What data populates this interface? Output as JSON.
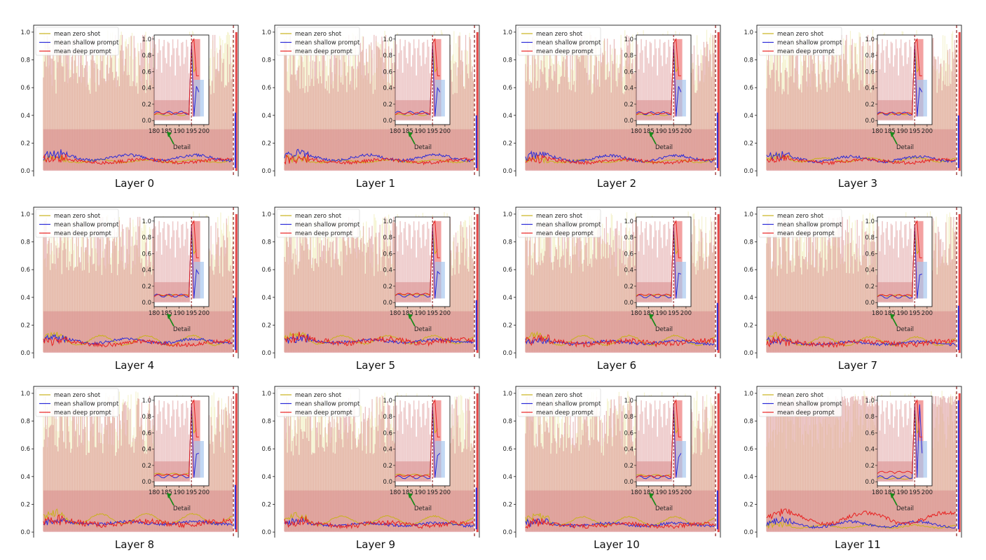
{
  "chart_data": {
    "type": "line",
    "figure_description": "Per-layer mean attention curves over token positions with shaded variance bands and an inset detail of positions 180-200",
    "layout": "grid 3 rows x 4 columns",
    "colors": {
      "zero_shot": "#c9b21c",
      "shallow": "#2a2ad8",
      "deep": "#e82020",
      "band": "#d98c8c",
      "band_light": "#f2f0c4",
      "marker": "#8b1a1a",
      "arrow": "#1a8a1a"
    },
    "legend": [
      "mean zero shot",
      "mean shallow prompt",
      "mean deep prompt"
    ],
    "xlim": [
      -10,
      200
    ],
    "ylim": [
      -0.05,
      1.05
    ],
    "xticks": [
      0,
      25,
      50,
      75,
      100,
      125,
      150,
      175,
      200
    ],
    "yticks": [
      "0.0",
      "0.2",
      "0.4",
      "0.6",
      "0.8",
      "1.0"
    ],
    "inset": {
      "xticks": [
        "180",
        "185",
        "190",
        "195",
        "200"
      ],
      "yticks": [
        "0.0",
        "0.2",
        "0.4",
        "0.6",
        "0.8",
        "1.0"
      ],
      "xlim": [
        180,
        202
      ],
      "ylim": [
        -0.05,
        1.05
      ],
      "detail_label": "Detail",
      "marker_x": 195
    },
    "vertical_marker_x": 195,
    "panels": [
      {
        "title": "Layer 0",
        "zero_base": 0.07,
        "zero_amp": 0.01,
        "shallow_base": 0.095,
        "shallow_amp": 0.02,
        "deep_base": 0.07,
        "deep_amp": 0.012,
        "deep_noise": 0.012,
        "end_deep": 1.0,
        "end_shallow": 0.42
      },
      {
        "title": "Layer 1",
        "zero_base": 0.07,
        "zero_amp": 0.01,
        "shallow_base": 0.095,
        "shallow_amp": 0.02,
        "deep_base": 0.07,
        "deep_amp": 0.012,
        "deep_noise": 0.012,
        "end_deep": 1.0,
        "end_shallow": 0.4
      },
      {
        "title": "Layer 2",
        "zero_base": 0.07,
        "zero_amp": 0.01,
        "shallow_base": 0.09,
        "shallow_amp": 0.02,
        "deep_base": 0.07,
        "deep_amp": 0.012,
        "deep_noise": 0.012,
        "end_deep": 1.0,
        "end_shallow": 0.42
      },
      {
        "title": "Layer 3",
        "zero_base": 0.08,
        "zero_amp": 0.015,
        "shallow_base": 0.085,
        "shallow_amp": 0.018,
        "deep_base": 0.07,
        "deep_amp": 0.012,
        "deep_noise": 0.012,
        "end_deep": 1.0,
        "end_shallow": 0.4
      },
      {
        "title": "Layer 4",
        "zero_base": 0.09,
        "zero_amp": 0.035,
        "shallow_base": 0.085,
        "shallow_amp": 0.015,
        "deep_base": 0.07,
        "deep_amp": 0.012,
        "deep_noise": 0.015,
        "end_deep": 1.0,
        "end_shallow": 0.4
      },
      {
        "title": "Layer 5",
        "zero_base": 0.095,
        "zero_amp": 0.03,
        "shallow_base": 0.085,
        "shallow_amp": 0.01,
        "deep_base": 0.085,
        "deep_amp": 0.015,
        "deep_noise": 0.02,
        "end_deep": 0.95,
        "end_shallow": 0.38
      },
      {
        "title": "Layer 6",
        "zero_base": 0.09,
        "zero_amp": 0.035,
        "shallow_base": 0.075,
        "shallow_amp": 0.01,
        "deep_base": 0.075,
        "deep_amp": 0.012,
        "deep_noise": 0.02,
        "end_deep": 0.95,
        "end_shallow": 0.36
      },
      {
        "title": "Layer 7",
        "zero_base": 0.085,
        "zero_amp": 0.03,
        "shallow_base": 0.07,
        "shallow_amp": 0.01,
        "deep_base": 0.07,
        "deep_amp": 0.012,
        "deep_noise": 0.02,
        "end_deep": 0.95,
        "end_shallow": 0.34
      },
      {
        "title": "Layer 8",
        "zero_base": 0.095,
        "zero_amp": 0.035,
        "shallow_base": 0.065,
        "shallow_amp": 0.01,
        "deep_base": 0.065,
        "deep_amp": 0.012,
        "deep_noise": 0.02,
        "end_deep": 1.0,
        "end_shallow": 0.34
      },
      {
        "title": "Layer 9",
        "zero_base": 0.085,
        "zero_amp": 0.03,
        "shallow_base": 0.055,
        "shallow_amp": 0.01,
        "deep_base": 0.055,
        "deep_amp": 0.012,
        "deep_noise": 0.018,
        "end_deep": 0.95,
        "end_shallow": 0.32
      },
      {
        "title": "Layer 10",
        "zero_base": 0.08,
        "zero_amp": 0.03,
        "shallow_base": 0.055,
        "shallow_amp": 0.01,
        "deep_base": 0.05,
        "deep_amp": 0.01,
        "deep_noise": 0.015,
        "end_deep": 1.0,
        "end_shallow": 0.3
      },
      {
        "title": "Layer 11",
        "zero_base": 0.04,
        "zero_amp": 0.01,
        "shallow_base": 0.055,
        "shallow_amp": 0.02,
        "deep_base": 0.1,
        "deep_amp": 0.04,
        "deep_noise": 0.015,
        "end_deep": 1.0,
        "end_shallow": 0.95
      }
    ]
  }
}
